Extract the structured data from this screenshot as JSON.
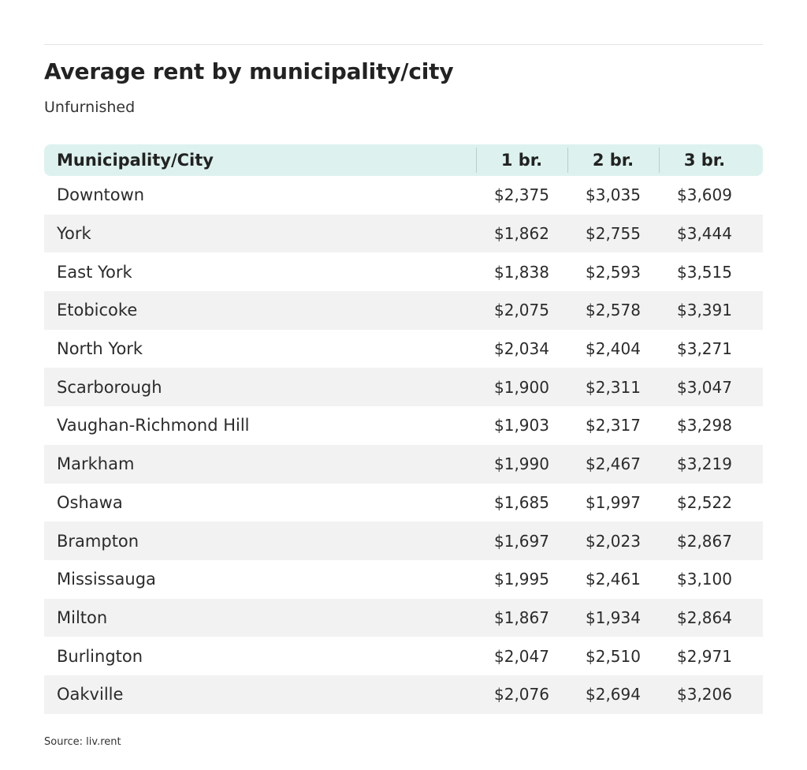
{
  "chart_data": {
    "type": "table",
    "title": "Average rent by municipality/city",
    "subtitle": "Unfurnished",
    "columns": [
      "Municipality/City",
      "1 br.",
      "2 br.",
      "3 br."
    ],
    "rows": [
      {
        "name": "Downtown",
        "values": [
          "$2,375",
          "$3,035",
          "$3,609"
        ]
      },
      {
        "name": "York",
        "values": [
          "$1,862",
          "$2,755",
          "$3,444"
        ]
      },
      {
        "name": "East York",
        "values": [
          "$1,838",
          "$2,593",
          "$3,515"
        ]
      },
      {
        "name": "Etobicoke",
        "values": [
          "$2,075",
          "$2,578",
          "$3,391"
        ]
      },
      {
        "name": "North York",
        "values": [
          "$2,034",
          "$2,404",
          "$3,271"
        ]
      },
      {
        "name": "Scarborough",
        "values": [
          "$1,900",
          "$2,311",
          "$3,047"
        ]
      },
      {
        "name": "Vaughan-Richmond Hill",
        "values": [
          "$1,903",
          "$2,317",
          "$3,298"
        ]
      },
      {
        "name": "Markham",
        "values": [
          "$1,990",
          "$2,467",
          "$3,219"
        ]
      },
      {
        "name": "Oshawa",
        "values": [
          "$1,685",
          "$1,997",
          "$2,522"
        ]
      },
      {
        "name": "Brampton",
        "values": [
          "$1,697",
          "$2,023",
          "$2,867"
        ]
      },
      {
        "name": "Mississauga",
        "values": [
          "$1,995",
          "$2,461",
          "$3,100"
        ]
      },
      {
        "name": "Milton",
        "values": [
          "$1,867",
          "$1,934",
          "$2,864"
        ]
      },
      {
        "name": "Burlington",
        "values": [
          "$2,047",
          "$2,510",
          "$2,971"
        ]
      },
      {
        "name": "Oakville",
        "values": [
          "$2,076",
          "$2,694",
          "$3,206"
        ]
      }
    ],
    "source": "Source: liv.rent"
  },
  "colors": {
    "header_bg": "#ddf2ee",
    "stripe_bg": "#f2f2f2",
    "text": "#222222"
  }
}
